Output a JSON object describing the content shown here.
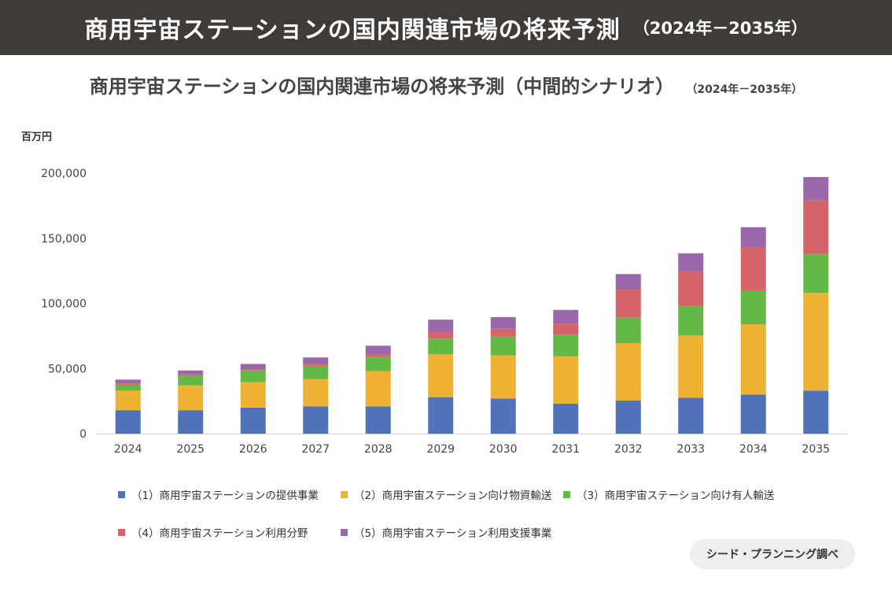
{
  "banner": {
    "title": "商用宇宙ステーションの国内関連市場の将来予測",
    "range": "（2024年－2035年）"
  },
  "chart_data": {
    "type": "bar",
    "stacked": true,
    "title": "商用宇宙ステーションの国内関連市場の将来予測（中間的シナリオ）",
    "title_range": "（2024年－2035年）",
    "ylabel": "百万円",
    "xlabel": "",
    "ylim": [
      0,
      200000
    ],
    "yticks": [
      0,
      50000,
      100000,
      150000,
      200000
    ],
    "ytick_labels": [
      "0",
      "50,000",
      "100,000",
      "150,000",
      "200,000"
    ],
    "grid": false,
    "legend_position": "bottom",
    "categories": [
      "2024",
      "2025",
      "2026",
      "2027",
      "2028",
      "2029",
      "2030",
      "2031",
      "2032",
      "2033",
      "2034",
      "2035"
    ],
    "series": [
      {
        "name": "（1）商用宇宙ステーションの提供事業",
        "color": "#4f72b8",
        "values": [
          18000,
          18000,
          20000,
          21000,
          21000,
          28000,
          27000,
          23000,
          25500,
          27500,
          30000,
          33000
        ]
      },
      {
        "name": "（2）商用宇宙ステーション向け物資輸送",
        "color": "#efb235",
        "values": [
          15000,
          19000,
          19500,
          21000,
          27000,
          33000,
          33000,
          36500,
          44000,
          48000,
          54000,
          75000
        ]
      },
      {
        "name": "（3）商用宇宙ステーション向け有人輸送",
        "color": "#63b846",
        "values": [
          4500,
          7500,
          9000,
          10000,
          11000,
          12000,
          14500,
          16500,
          19500,
          22500,
          26000,
          30000
        ]
      },
      {
        "name": "（4）商用宇宙ステーション利用分野",
        "color": "#d7636a",
        "values": [
          1000,
          1000,
          1000,
          1500,
          2000,
          5000,
          6000,
          8500,
          21500,
          26500,
          33500,
          41000
        ]
      },
      {
        "name": "（5）商用宇宙ステーション利用支援事業",
        "color": "#9a68aa",
        "values": [
          3000,
          3000,
          4000,
          5000,
          6500,
          9500,
          9000,
          10500,
          12000,
          14000,
          15000,
          18000
        ]
      }
    ]
  },
  "credit": "シード・プランニング調べ"
}
